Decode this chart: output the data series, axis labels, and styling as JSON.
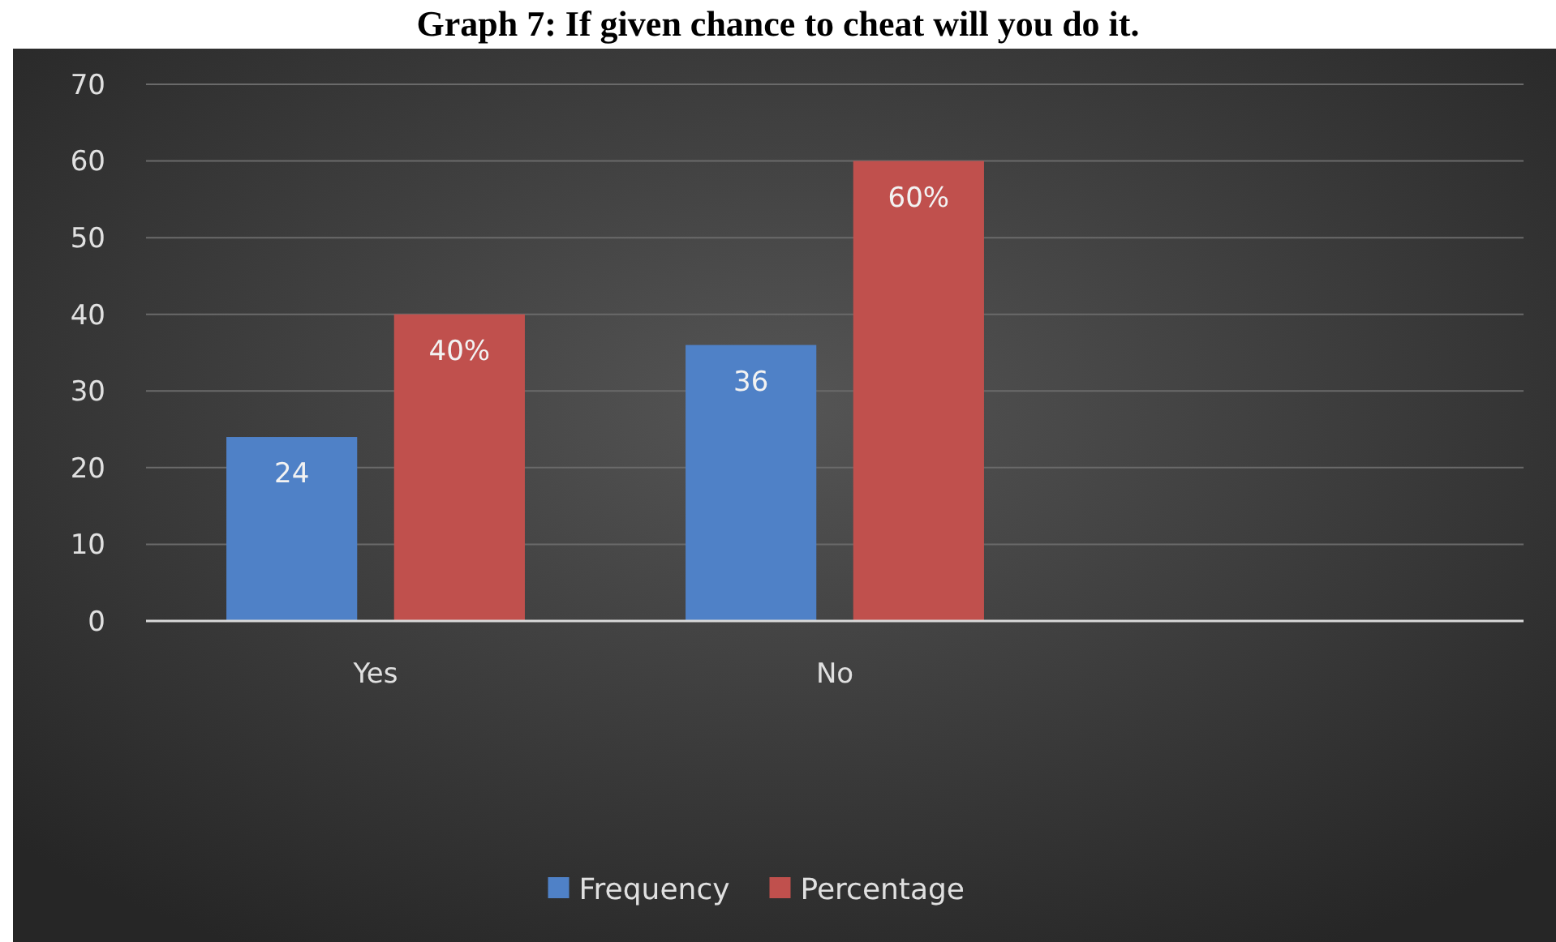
{
  "chart_data": {
    "type": "bar",
    "title": "Graph 7: If given chance to cheat will you do it.",
    "categories": [
      "Yes",
      "No",
      null
    ],
    "series": [
      {
        "name": "Frequency",
        "color": "#4f81c7",
        "values": [
          24,
          36,
          null
        ],
        "value_labels": [
          "24",
          "36",
          null
        ]
      },
      {
        "name": "Percentage",
        "color": "#c0504d",
        "values": [
          40,
          60,
          null
        ],
        "value_labels": [
          "40%",
          "60%",
          null
        ]
      }
    ],
    "ylim": [
      0,
      70
    ],
    "yticks": [
      0,
      10,
      20,
      30,
      40,
      50,
      60,
      70
    ],
    "grid": "y",
    "legend": "bottom"
  }
}
